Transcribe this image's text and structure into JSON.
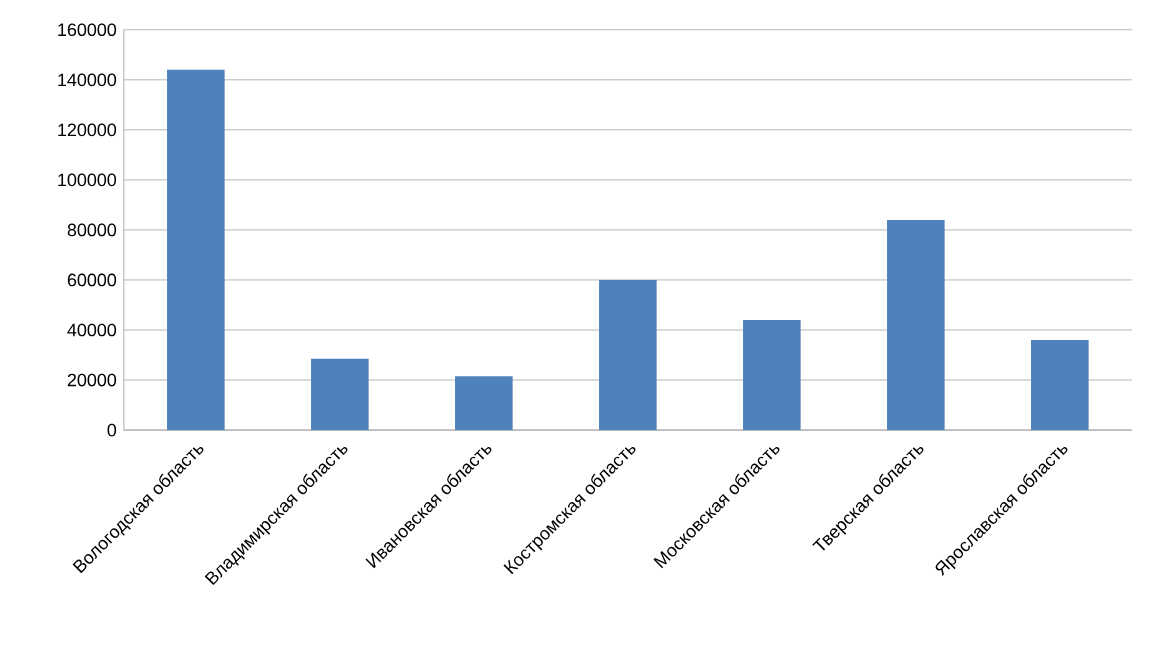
{
  "chart_data": {
    "type": "bar",
    "categories": [
      "Вологодская область",
      "Владимирская область",
      "Ивановская область",
      "Костромская область",
      "Московская область",
      "Тверская область",
      "Ярославская область"
    ],
    "values": [
      144000,
      28500,
      21500,
      60000,
      44000,
      84000,
      36000
    ],
    "color": "#4f81bd",
    "ylim": [
      0,
      160000
    ],
    "yticks": [
      0,
      20000,
      40000,
      60000,
      80000,
      100000,
      120000,
      140000,
      160000
    ],
    "grid": "y"
  }
}
